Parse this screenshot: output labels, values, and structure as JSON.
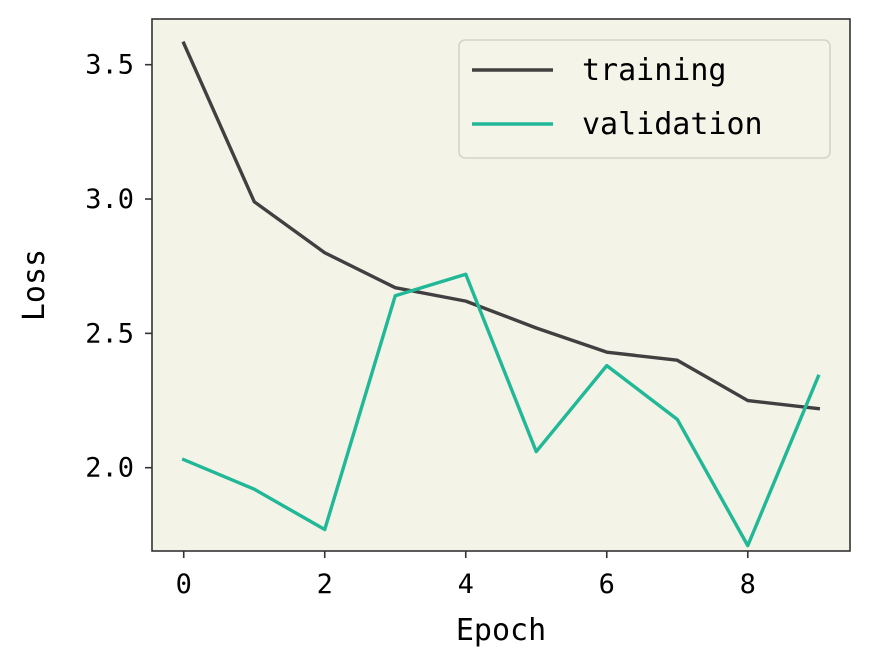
{
  "chart_data": {
    "type": "line",
    "xlabel": "Epoch",
    "ylabel": "Loss",
    "x": [
      0,
      1,
      2,
      3,
      4,
      5,
      6,
      7,
      8,
      9
    ],
    "xlim": [
      -0.45,
      9.45
    ],
    "ylim": [
      1.69,
      3.67
    ],
    "xticks": [
      0,
      2,
      4,
      6,
      8
    ],
    "yticks": [
      2.0,
      2.5,
      3.0,
      3.5
    ],
    "xtick_labels": [
      "0",
      "2",
      "4",
      "6",
      "8"
    ],
    "ytick_labels": [
      "2.0",
      "2.5",
      "3.0",
      "3.5"
    ],
    "grid": false,
    "legend_position": "top-right",
    "series": [
      {
        "name": "training",
        "color": "#404040",
        "values": [
          3.58,
          2.99,
          2.8,
          2.67,
          2.62,
          2.52,
          2.43,
          2.4,
          2.25,
          2.22
        ]
      },
      {
        "name": "validation",
        "color": "#20b896",
        "values": [
          2.03,
          1.92,
          1.77,
          2.64,
          2.72,
          2.06,
          2.38,
          2.18,
          1.71,
          2.34
        ]
      }
    ],
    "plot_background": "#f3f3e7",
    "frame_color": "#333333"
  }
}
